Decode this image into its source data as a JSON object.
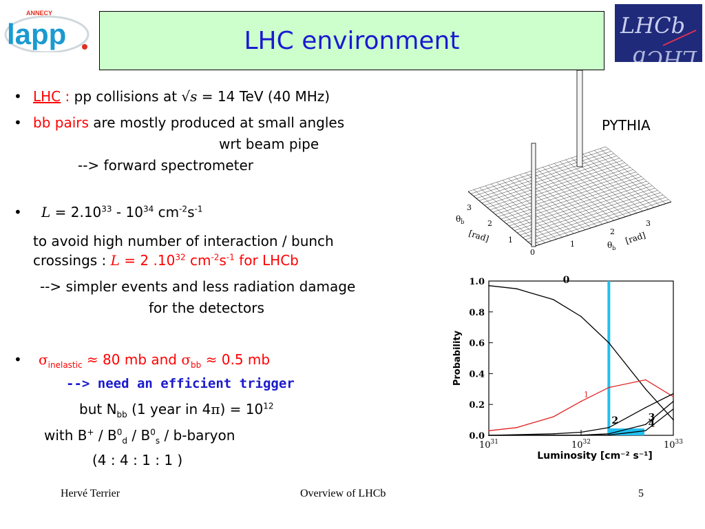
{
  "slide": {
    "title": "LHC environment",
    "pythia_label": "PYTHIA",
    "footer": {
      "author": "Hervé Terrier",
      "center": "Overview of LHCb",
      "page": "5"
    }
  },
  "logos": {
    "left": "lapp",
    "left_small": "ANNECY",
    "right": "LHCb"
  },
  "body": {
    "b1_lhc": "LHC",
    "b1_colon": " :",
    "b1_text": "pp collisions at",
    "b1_sqrt": "√",
    "b1_s": "s",
    "b1_rest": " = 14 TeV  (40 MHz)",
    "b2_red": "bb pairs",
    "b2_text": " are mostly produced at small angles",
    "b2_line2": "wrt beam pipe",
    "b2_line3": "--> forward spectrometer",
    "b3_L": "L",
    "b3_a": " = 2.10",
    "b3_e1": "33",
    "b3_b": "  - 10",
    "b3_e2": "34",
    "b3_c": " cm",
    "b3_e3": "-2",
    "b3_d": "s",
    "b3_e4": "-1",
    "b3_line2": "to avoid high number of interaction / bunch",
    "b3_line3a": "crossings :",
    "b3_line3_L": "L",
    "b3_line3b": " = 2 .10",
    "b3_line3e1": "32",
    "b3_line3c": " cm",
    "b3_line3e2": "-2",
    "b3_line3d": "s",
    "b3_line3e3": "-1",
    "b3_line3f": " for LHCb",
    "b3_line4": "--> simpler events and less radiation damage",
    "b3_line5": "for the detectors",
    "b4_sigma": "σ",
    "b4_inel": "inelastic",
    "b4_a": " ≈ 80 mb and ",
    "b4_sigma2": "σ",
    "b4_bb": "bb",
    "b4_b": " ≈ 0.5 mb",
    "b4_line2": "--> need an efficient trigger",
    "b4_line3a": "but N",
    "b4_line3sub": "bb",
    "b4_line3b": " (1 year in 4",
    "b4_line3pi": "π",
    "b4_line3c": ") = 10",
    "b4_line3e": "12",
    "b4_line4a": "with  B",
    "b4_line4e1": "+",
    "b4_line4b": " / B",
    "b4_line4e2": "0",
    "b4_line4s1": "d",
    "b4_line4c": " / B",
    "b4_line4e3": "0",
    "b4_line4s2": "s",
    "b4_line4d": " / b-baryon",
    "b4_line5": "(4  :   4   :  1   :   1  )"
  },
  "lego_plot": {
    "axis_left_label": "θ",
    "axis_left_sub": "b̄",
    "axis_right_label": "θ",
    "axis_right_sub": "b",
    "unit": "[rad]",
    "ticks_left": [
      "3",
      "2",
      "1",
      "0"
    ],
    "ticks_right": [
      "1",
      "2",
      "3"
    ]
  },
  "chart_data": {
    "type": "line",
    "xlabel": "Luminosity [cm⁻² s⁻¹]",
    "ylabel": "Probability",
    "x_scale": "log",
    "xlim": [
      1e+31,
      1e+33
    ],
    "ylim": [
      0,
      1.0
    ],
    "y_ticks": [
      "0.0",
      "0.2",
      "0.4",
      "0.6",
      "0.8",
      "1.0"
    ],
    "x_ticks": [
      "10",
      "10",
      "10"
    ],
    "x_tick_exps": [
      "31",
      "32",
      "33"
    ],
    "highlight_x": 2e+32,
    "series": [
      {
        "name": "0",
        "x": [
          1e+31,
          2e+31,
          5e+31,
          1e+32,
          2e+32,
          5e+32,
          1e+33
        ],
        "values": [
          0.97,
          0.95,
          0.88,
          0.77,
          0.6,
          0.3,
          0.1
        ],
        "color": "#000000"
      },
      {
        "name": "1",
        "x": [
          1e+31,
          2e+31,
          5e+31,
          1e+32,
          2e+32,
          5e+32,
          1e+33
        ],
        "values": [
          0.03,
          0.05,
          0.12,
          0.22,
          0.31,
          0.36,
          0.25
        ],
        "color": "#e02020"
      },
      {
        "name": "2",
        "x": [
          1e+31,
          5e+31,
          1e+32,
          2e+32,
          5e+32,
          1e+33
        ],
        "values": [
          0.0,
          0.01,
          0.02,
          0.05,
          0.18,
          0.27
        ],
        "color": "#000000"
      },
      {
        "name": "3",
        "x": [
          1e+31,
          1e+32,
          2e+32,
          5e+32,
          1e+33
        ],
        "values": [
          0.0,
          0.002,
          0.01,
          0.07,
          0.22
        ],
        "color": "#000000"
      },
      {
        "name": "4",
        "x": [
          1e+31,
          1e+32,
          2e+32,
          5e+32,
          1e+33
        ],
        "values": [
          0.0,
          0.0,
          0.002,
          0.03,
          0.17
        ],
        "color": "#000000"
      }
    ],
    "highlight_color": "#22c0f0"
  }
}
